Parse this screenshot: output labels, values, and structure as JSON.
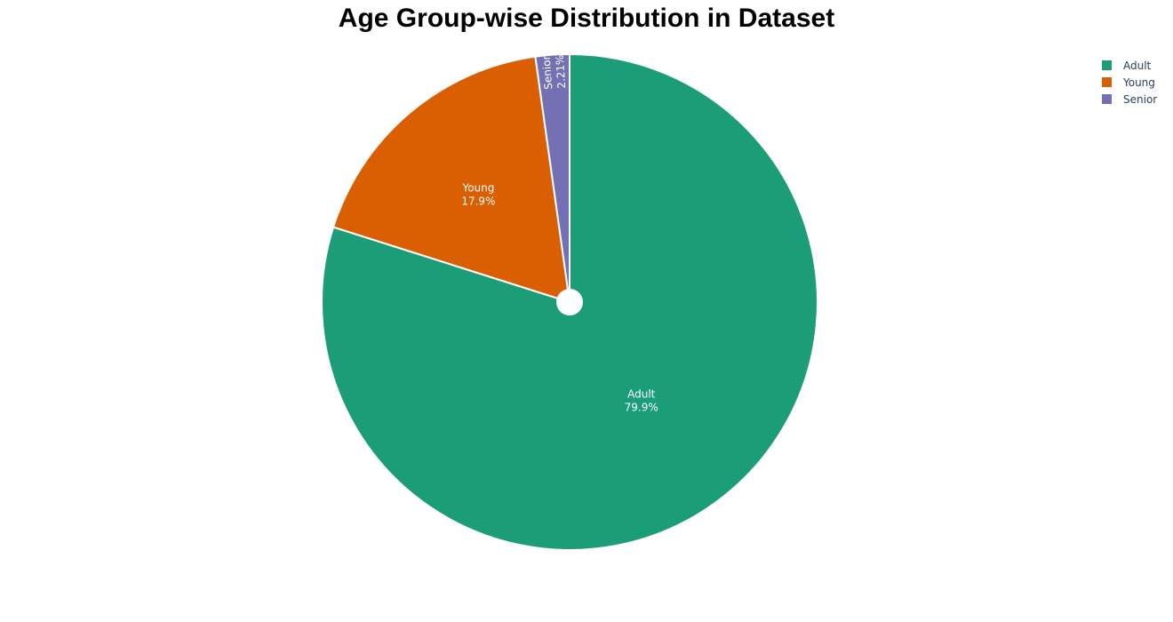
{
  "chart_data": {
    "type": "pie",
    "title": "Age Group-wise Distribution in Dataset",
    "hole": "small",
    "start_angle_deg": 90,
    "direction": "clockwise",
    "legend_position": "top-right",
    "slices": [
      {
        "label": "Adult",
        "value": 79.9,
        "text": "79.9%",
        "color": "#1b9e77"
      },
      {
        "label": "Young",
        "value": 17.9,
        "text": "17.9%",
        "color": "#d95f02"
      },
      {
        "label": "Senior",
        "value": 2.21,
        "text": "2.21%",
        "color": "#7570b3"
      }
    ],
    "legend_order": [
      "Adult",
      "Young",
      "Senior"
    ]
  }
}
